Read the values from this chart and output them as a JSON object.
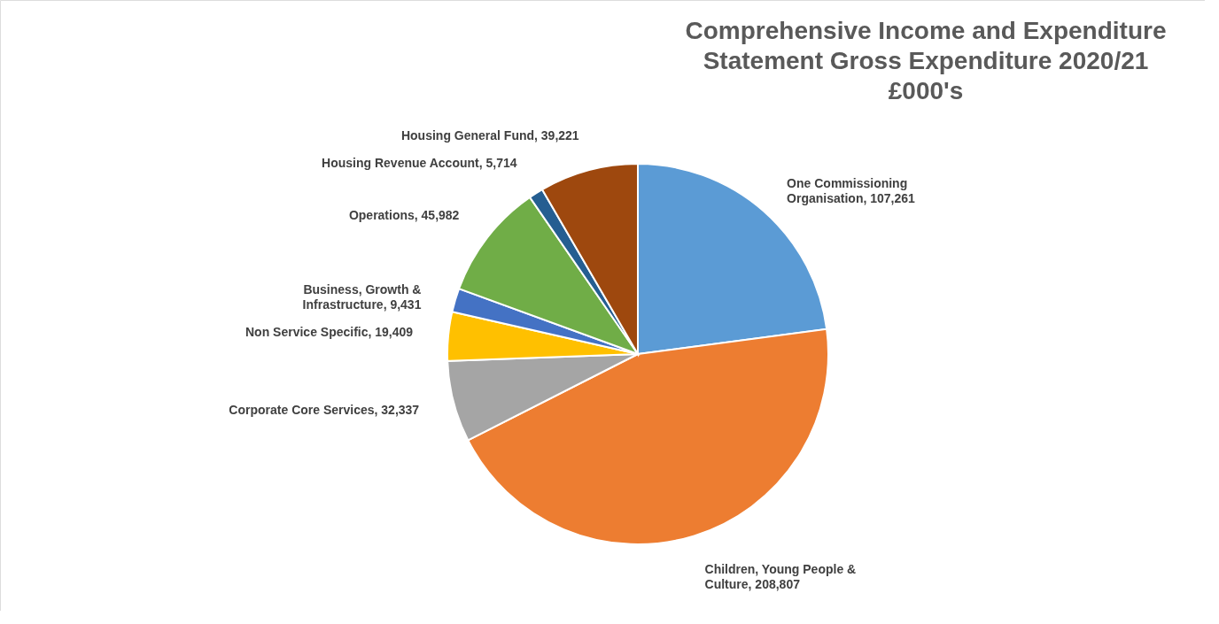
{
  "chart_data": {
    "type": "pie",
    "title": "Comprehensive Income and Expenditure Statement Gross Expenditure 2020/21 £000's",
    "categories": [
      "One Commissioning Organisation",
      "Children, Young People & Culture",
      "Corporate Core Services",
      "Non Service Specific",
      "Business, Growth & Infrastructure",
      "Operations",
      "Housing Revenue Account",
      "Housing General Fund"
    ],
    "values": [
      107261,
      208807,
      32337,
      19409,
      9431,
      45982,
      5714,
      39221
    ],
    "value_labels": [
      "107,261",
      "208,807",
      "32,337",
      "19,409",
      "9,431",
      "45,982",
      "5,714",
      "39,221"
    ],
    "colors": [
      "#5b9bd5",
      "#ed7d31",
      "#a5a5a5",
      "#ffc000",
      "#4472c4",
      "#70ad47",
      "#255e91",
      "#9e480e"
    ]
  }
}
